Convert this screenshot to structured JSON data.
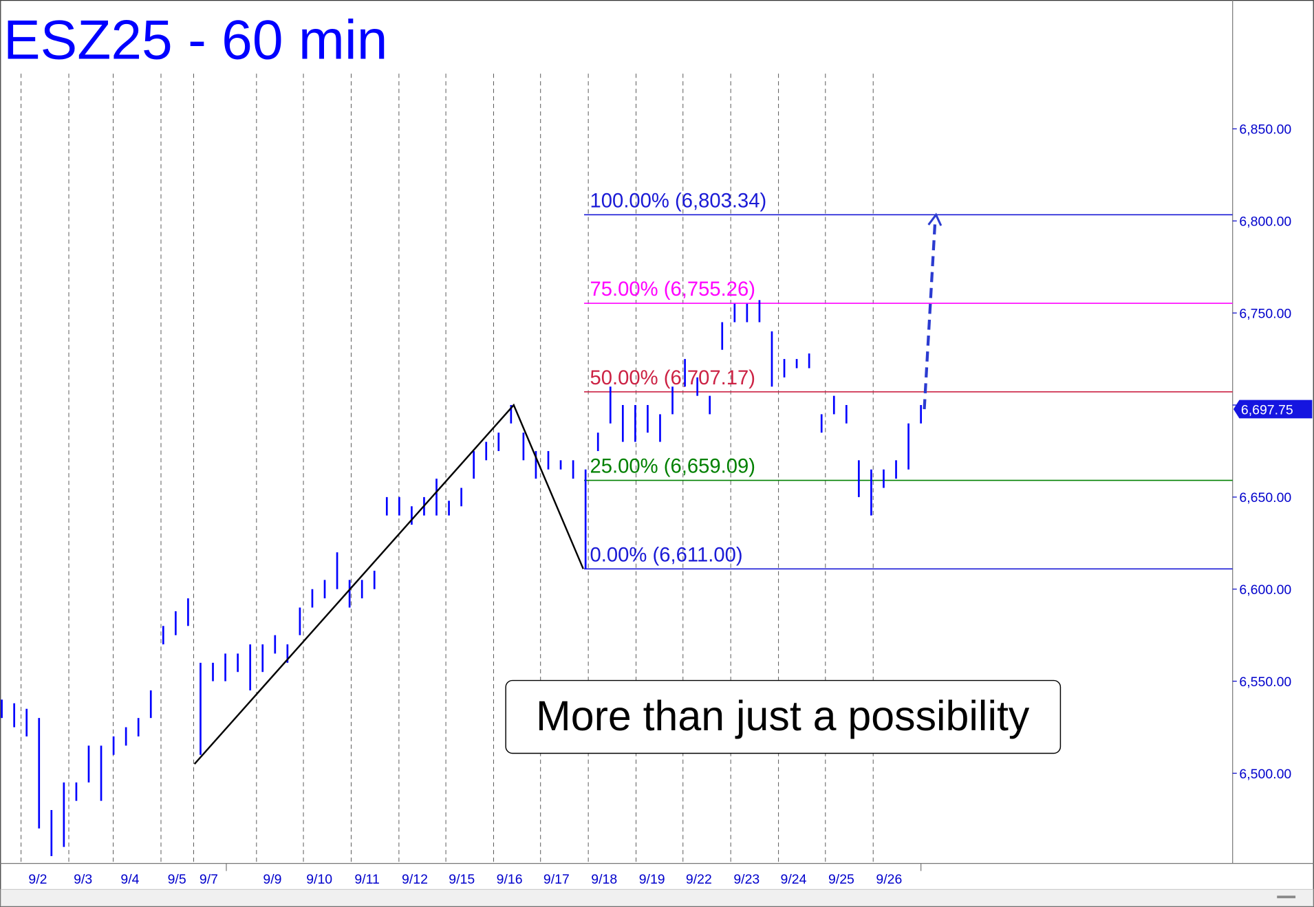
{
  "chart_data": {
    "type": "ohlc",
    "title": "ESZ25 - 60 min",
    "color": "#0000ff",
    "categories": [
      "9/2",
      "9/3",
      "9/4",
      "9/5",
      "9/7",
      "9/9",
      "9/10",
      "9/11",
      "9/12",
      "9/15",
      "9/16",
      "9/17",
      "9/18",
      "9/19",
      "9/22",
      "9/23",
      "9/24",
      "9/25",
      "9/26"
    ],
    "high": [
      6540,
      6538,
      6535,
      6530,
      6480,
      6495,
      6495,
      6515,
      6515,
      6520,
      6525,
      6530,
      6545,
      6580,
      6588,
      6595,
      6560,
      6560,
      6565,
      6565,
      6570,
      6570,
      6575,
      6570,
      6590,
      6600,
      6605,
      6620,
      6605,
      6605,
      6610,
      6650,
      6650,
      6645,
      6650,
      6660,
      6648,
      6655,
      6675,
      6680,
      6685,
      6700,
      6685,
      6675,
      6675,
      6670,
      6670,
      6665,
      6685,
      6710,
      6700,
      6700,
      6700,
      6695,
      6710,
      6725,
      6715,
      6705,
      6745,
      6755,
      6755,
      6757,
      6740,
      6725,
      6725,
      6728,
      6695,
      6705,
      6700,
      6670,
      6665,
      6665,
      6670,
      6690,
      6700
    ],
    "low": [
      6530,
      6525,
      6520,
      6470,
      6455,
      6460,
      6485,
      6495,
      6485,
      6510,
      6515,
      6520,
      6530,
      6570,
      6575,
      6580,
      6510,
      6550,
      6550,
      6555,
      6545,
      6555,
      6565,
      6560,
      6575,
      6590,
      6595,
      6600,
      6590,
      6595,
      6600,
      6640,
      6640,
      6635,
      6640,
      6640,
      6640,
      6645,
      6660,
      6670,
      6675,
      6690,
      6670,
      6660,
      6665,
      6665,
      6660,
      6611,
      6675,
      6690,
      6680,
      6680,
      6685,
      6680,
      6695,
      6710,
      6705,
      6695,
      6730,
      6745,
      6745,
      6745,
      6710,
      6715,
      6720,
      6720,
      6685,
      6695,
      6690,
      6650,
      6640,
      6655,
      6660,
      6665,
      6690
    ],
    "ylim": [
      6451,
      6920
    ],
    "yticks": [
      {
        "value": 6500,
        "label": "6,500.00"
      },
      {
        "value": 6550,
        "label": "6,550.00"
      },
      {
        "value": 6600,
        "label": "6,600.00"
      },
      {
        "value": 6650,
        "label": "6,650.00"
      },
      {
        "value": 6700,
        "label": "6,700.00"
      },
      {
        "value": 6750,
        "label": "6,750.00"
      },
      {
        "value": 6800,
        "label": "6,800.00"
      },
      {
        "value": 6850,
        "label": "6,850.00"
      }
    ],
    "last_price": {
      "value": 6697.75,
      "label": "6,697.75"
    },
    "fib_levels": [
      {
        "label": "100.00% (6,803.34)",
        "value": 6803.34,
        "color": "#1a1ad6"
      },
      {
        "label": "75.00% (6,755.26)",
        "value": 6755.26,
        "color": "#ff00ff"
      },
      {
        "label": "50.00% (6,707.17)",
        "value": 6707.17,
        "color": "#cc2244"
      },
      {
        "label": "25.00% (6,659.09)",
        "value": 6659.09,
        "color": "#008000"
      },
      {
        "label": "0.00% (6,611.00)",
        "value": 6611.0,
        "color": "#1a1ad6"
      }
    ],
    "abc_points": [
      6505,
      6700,
      6611
    ],
    "annotation": "More than just a possibility"
  }
}
